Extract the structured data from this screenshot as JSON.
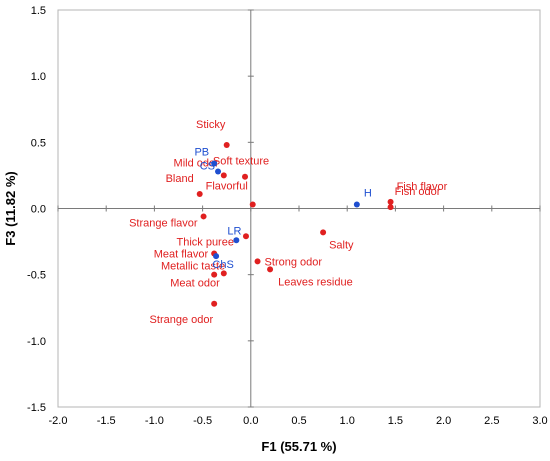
{
  "chart_data": {
    "type": "scatter",
    "title": "",
    "xlabel": "F1 (55.71 %)",
    "ylabel": "F3 (11.82 %)",
    "xlim": [
      -2.0,
      3.0
    ],
    "ylim": [
      -1.5,
      1.5
    ],
    "x_ticks": [
      "-2.0",
      "-1.5",
      "-1.0",
      "-0.5",
      "0.0",
      "0.5",
      "1.0",
      "1.5",
      "2.0",
      "2.5",
      "3.0"
    ],
    "y_ticks": [
      "1.5",
      "1.0",
      "0.5",
      "0.0",
      "-0.5",
      "-1.0",
      "-1.5"
    ],
    "grid": false,
    "colors": {
      "attributes": "#e02020",
      "samples": "#1f4fd0"
    },
    "series": [
      {
        "group": "attributes",
        "points": [
          {
            "label": "Sticky",
            "x": -0.25,
            "y": 0.48
          },
          {
            "label": "Soft texture",
            "x": -0.06,
            "y": 0.24
          },
          {
            "label": "Mild odor",
            "x": -0.28,
            "y": 0.25
          },
          {
            "label": "Bland",
            "x": -0.53,
            "y": 0.11
          },
          {
            "label": "Flavorful",
            "x": 0.02,
            "y": 0.03
          },
          {
            "label": "Fish flavor",
            "x": 1.45,
            "y": 0.05
          },
          {
            "label": "Fish odor",
            "x": 1.45,
            "y": 0.01
          },
          {
            "label": "Strange flavor",
            "x": -0.49,
            "y": -0.06
          },
          {
            "label": "Thick puree",
            "x": -0.05,
            "y": -0.21
          },
          {
            "label": "Salty",
            "x": 0.75,
            "y": -0.18
          },
          {
            "label": "Meat flavor",
            "x": -0.38,
            "y": -0.34
          },
          {
            "label": "Strong odor",
            "x": 0.07,
            "y": -0.4
          },
          {
            "label": "Meat odor",
            "x": -0.28,
            "y": -0.49
          },
          {
            "label": "Leaves residue",
            "x": 0.2,
            "y": -0.46
          },
          {
            "label": "Metallic taste",
            "x": -0.38,
            "y": -0.5
          },
          {
            "label": "Strange odor",
            "x": -0.38,
            "y": -0.72
          }
        ]
      },
      {
        "group": "samples",
        "points": [
          {
            "label": "PB",
            "x": -0.38,
            "y": 0.34
          },
          {
            "label": "CS",
            "x": -0.34,
            "y": 0.28
          },
          {
            "label": "H",
            "x": 1.1,
            "y": 0.03
          },
          {
            "label": "LR",
            "x": -0.15,
            "y": -0.24
          },
          {
            "label": "ChS",
            "x": -0.36,
            "y": -0.36
          }
        ]
      }
    ]
  }
}
